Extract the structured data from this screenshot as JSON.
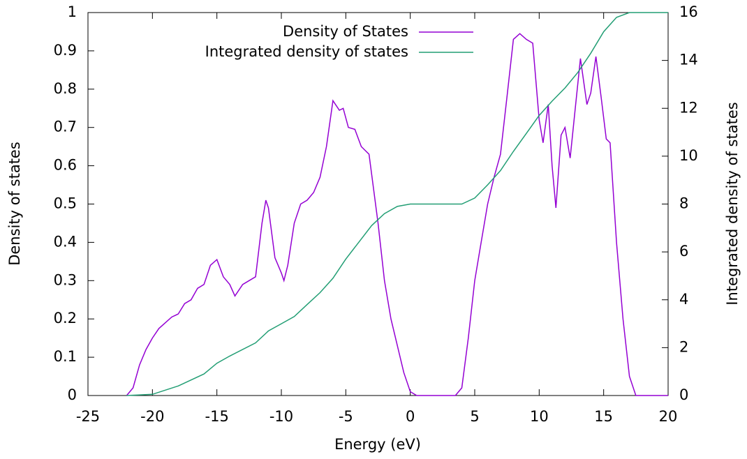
{
  "chart_data": {
    "type": "line",
    "xlabel": "Energy (eV)",
    "ylabel": "Density of states",
    "y2label": "Integrated density of states",
    "xlim": [
      -25,
      20
    ],
    "xticks": [
      -25,
      -20,
      -15,
      -10,
      -5,
      0,
      5,
      10,
      15,
      20
    ],
    "ylim": [
      0,
      1
    ],
    "yticks": [
      0,
      0.1,
      0.2,
      0.3,
      0.4,
      0.5,
      0.6,
      0.7,
      0.8,
      0.9,
      1
    ],
    "y2lim": [
      0,
      16
    ],
    "y2ticks": [
      0,
      2,
      4,
      6,
      8,
      10,
      12,
      14,
      16
    ],
    "legend": "top-right",
    "series": [
      {
        "name": "Density of States",
        "color": "#9400d3",
        "x": [
          -22,
          -21.5,
          -21,
          -20.5,
          -20,
          -19.5,
          -19,
          -18.5,
          -18,
          -17.5,
          -17,
          -16.5,
          -16,
          -15.5,
          -15,
          -14.5,
          -14,
          -13.6,
          -13,
          -12.5,
          -12,
          -11.5,
          -11.2,
          -11,
          -10.5,
          -10,
          -9.8,
          -9.5,
          -9,
          -8.5,
          -8,
          -7.5,
          -7,
          -6.5,
          -6,
          -5.5,
          -5.2,
          -4.8,
          -4.3,
          -3.8,
          -3.2,
          -2.5,
          -2,
          -1.5,
          -1,
          -0.5,
          0,
          0.5,
          3.5,
          4,
          4.5,
          5,
          5.5,
          6,
          6.5,
          7,
          7.5,
          8,
          8.5,
          9,
          9.5,
          10,
          10.3,
          10.7,
          11,
          11.3,
          11.7,
          12,
          12.4,
          12.8,
          13.2,
          13.7,
          14,
          14.4,
          14.8,
          15.2,
          15.5,
          16,
          16.5,
          17,
          17.5,
          20
        ],
        "values": [
          0,
          0.02,
          0.08,
          0.12,
          0.15,
          0.175,
          0.19,
          0.205,
          0.213,
          0.24,
          0.25,
          0.28,
          0.29,
          0.34,
          0.355,
          0.31,
          0.29,
          0.26,
          0.29,
          0.3,
          0.31,
          0.45,
          0.51,
          0.49,
          0.36,
          0.32,
          0.3,
          0.34,
          0.45,
          0.5,
          0.51,
          0.53,
          0.57,
          0.65,
          0.77,
          0.745,
          0.75,
          0.7,
          0.695,
          0.65,
          0.63,
          0.45,
          0.3,
          0.2,
          0.13,
          0.06,
          0.01,
          0,
          0,
          0.02,
          0.15,
          0.3,
          0.4,
          0.5,
          0.57,
          0.63,
          0.78,
          0.93,
          0.945,
          0.93,
          0.92,
          0.72,
          0.66,
          0.76,
          0.6,
          0.49,
          0.68,
          0.7,
          0.62,
          0.75,
          0.88,
          0.76,
          0.79,
          0.885,
          0.78,
          0.67,
          0.66,
          0.4,
          0.2,
          0.05,
          0,
          0
        ]
      },
      {
        "name": "Integrated density of states",
        "color": "#229e74",
        "axis": "y2",
        "x": [
          -22,
          -20,
          -18,
          -16,
          -15,
          -14,
          -12,
          -11,
          -10,
          -9,
          -8,
          -7,
          -6,
          -5,
          -4,
          -3,
          -2,
          -1,
          0,
          4,
          5,
          6,
          7,
          8,
          9,
          10,
          11,
          12,
          13,
          14,
          15,
          16,
          17,
          20
        ],
        "values": [
          0,
          0.05,
          0.4,
          0.9,
          1.35,
          1.65,
          2.2,
          2.7,
          3.0,
          3.3,
          3.8,
          4.3,
          4.9,
          5.7,
          6.4,
          7.1,
          7.6,
          7.9,
          8.0,
          8.0,
          8.25,
          8.8,
          9.4,
          10.2,
          10.95,
          11.7,
          12.3,
          12.85,
          13.5,
          14.3,
          15.2,
          15.8,
          16,
          16
        ]
      }
    ]
  }
}
